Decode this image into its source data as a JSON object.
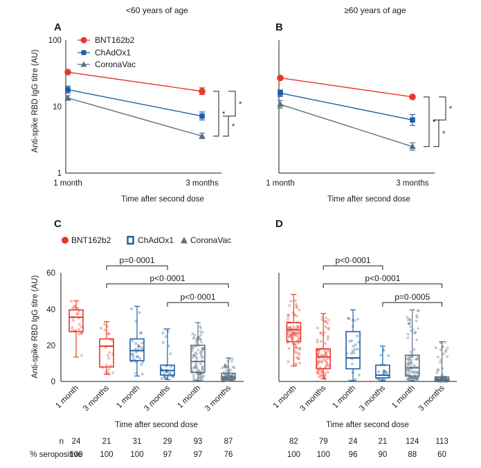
{
  "figure_titles": {
    "left": "<60 years of age",
    "right": "≥60 years of age"
  },
  "panel_letters": {
    "A": "A",
    "B": "B",
    "C": "C",
    "D": "D"
  },
  "colors": {
    "BNT162b2": "#e8372c",
    "ChAdOx1": "#1d5ea8",
    "CoronaVac": "#5a7184"
  },
  "table": {
    "row_labels": [
      "n",
      "% seropositive"
    ],
    "C": {
      "n": [
        "24",
        "21",
        "31",
        "29",
        "93",
        "87"
      ],
      "seropositive": [
        "100",
        "100",
        "100",
        "97",
        "97",
        "76"
      ]
    },
    "D": {
      "n": [
        "82",
        "79",
        "24",
        "21",
        "124",
        "113"
      ],
      "seropositive": [
        "100",
        "100",
        "96",
        "90",
        "88",
        "60"
      ]
    }
  },
  "chart_data": [
    {
      "panel": "A",
      "type": "line",
      "title": "<60 years of age",
      "xlabel": "Time after second dose",
      "ylabel": "Anti-spike RBD IgG titre (AU)",
      "yscale": "log",
      "ylim": [
        1,
        100
      ],
      "yticks": [
        "1",
        "10",
        "100"
      ],
      "categories": [
        "1 month",
        "3 months"
      ],
      "legend": [
        "BNT162b2",
        "ChAdOx1",
        "CoronaVac"
      ],
      "series": [
        {
          "name": "BNT162b2",
          "marker": "circle",
          "values": [
            33,
            17
          ],
          "err": [
            [
              33,
              33
            ],
            [
              15.2,
              19.2
            ]
          ]
        },
        {
          "name": "ChAdOx1",
          "marker": "square",
          "values": [
            18,
            7.2
          ],
          "err": [
            [
              16,
              20.3
            ],
            [
              6.3,
              8.3
            ]
          ]
        },
        {
          "name": "CoronaVac",
          "marker": "triangle",
          "values": [
            13.5,
            3.6
          ],
          "err": [
            [
              12.4,
              14.6
            ],
            [
              3.3,
              4.0
            ]
          ]
        }
      ],
      "significance": [
        {
          "between": [
            "BNT162b2",
            "CoronaVac"
          ],
          "label": "*"
        },
        {
          "between": [
            "BNT162b2",
            "ChAdOx1"
          ],
          "label": "*"
        },
        {
          "between": [
            "ChAdOx1",
            "CoronaVac"
          ],
          "label": "*"
        }
      ]
    },
    {
      "panel": "B",
      "type": "line",
      "title": "≥60 years of age",
      "xlabel": "Time after second dose",
      "ylabel": "",
      "yscale": "log",
      "ylim": [
        1,
        100
      ],
      "categories": [
        "1 month",
        "3 months"
      ],
      "series": [
        {
          "name": "BNT162b2",
          "marker": "circle",
          "values": [
            27,
            14
          ],
          "err": [
            [
              27,
              27
            ],
            [
              13.1,
              14.9
            ]
          ]
        },
        {
          "name": "ChAdOx1",
          "marker": "square",
          "values": [
            16,
            6.3
          ],
          "err": [
            [
              14.2,
              17.8
            ],
            [
              5.2,
              7.6
            ]
          ]
        },
        {
          "name": "CoronaVac",
          "marker": "triangle",
          "values": [
            10.8,
            2.5
          ],
          "err": [
            [
              9.5,
              12.3
            ],
            [
              2.2,
              2.85
            ]
          ]
        }
      ],
      "significance": [
        {
          "between": [
            "BNT162b2",
            "CoronaVac"
          ],
          "label": "*"
        },
        {
          "between": [
            "BNT162b2",
            "ChAdOx1"
          ],
          "label": "*"
        },
        {
          "between": [
            "ChAdOx1",
            "CoronaVac"
          ],
          "label": "*"
        }
      ]
    },
    {
      "panel": "C",
      "type": "box",
      "xlabel": "Time after second dose",
      "ylabel": "Anti-spike RBD IgG titre (AU)",
      "ylim": [
        0,
        60
      ],
      "yticks": [
        "0",
        "20",
        "40",
        "60"
      ],
      "legend": [
        "BNT162b2",
        "ChAdOx1",
        "CoronaVac"
      ],
      "categories": [
        "1 month",
        "3 months",
        "1 month",
        "3 months",
        "1 month",
        "3 months"
      ],
      "boxes": [
        {
          "vaccine": "BNT162b2",
          "time": "1 month",
          "min": 13.5,
          "q1": 27.5,
          "median": 35.5,
          "q3": 39.5,
          "max": 44.5,
          "n": 24
        },
        {
          "vaccine": "BNT162b2",
          "time": "3 months",
          "min": 4,
          "q1": 8,
          "median": 19.5,
          "q3": 23.5,
          "max": 33,
          "n": 21
        },
        {
          "vaccine": "ChAdOx1",
          "time": "1 month",
          "min": 3,
          "q1": 11.5,
          "median": 17,
          "q3": 23.5,
          "max": 41.5,
          "n": 31
        },
        {
          "vaccine": "ChAdOx1",
          "time": "3 months",
          "min": 1,
          "q1": 3.5,
          "median": 6,
          "q3": 9,
          "max": 29,
          "n": 29
        },
        {
          "vaccine": "CoronaVac",
          "time": "1 month",
          "min": 0.5,
          "q1": 5,
          "median": 11,
          "q3": 20,
          "max": 32.5,
          "n": 93
        },
        {
          "vaccine": "CoronaVac",
          "time": "3 months",
          "min": 0,
          "q1": 1.5,
          "median": 2.5,
          "q3": 4.5,
          "max": 13,
          "n": 87
        }
      ],
      "comparisons": [
        {
          "from": 2,
          "to": 4,
          "label": "p=0·0001"
        },
        {
          "from": 2,
          "to": 6,
          "label": "p<0·0001"
        },
        {
          "from": 4,
          "to": 6,
          "label": "p<0·0001"
        }
      ]
    },
    {
      "panel": "D",
      "type": "box",
      "xlabel": "Time after second dose",
      "ylabel": "",
      "ylim": [
        0,
        60
      ],
      "categories": [
        "1 month",
        "3 months",
        "1 month",
        "3 months",
        "1 month",
        "3 months"
      ],
      "boxes": [
        {
          "vaccine": "BNT162b2",
          "time": "1 month",
          "min": 8.5,
          "q1": 22,
          "median": 28.5,
          "q3": 32.5,
          "max": 48,
          "n": 82
        },
        {
          "vaccine": "BNT162b2",
          "time": "3 months",
          "min": 1.5,
          "q1": 7,
          "median": 13.5,
          "q3": 18,
          "max": 37.5,
          "n": 79
        },
        {
          "vaccine": "ChAdOx1",
          "time": "1 month",
          "min": 0.5,
          "q1": 7,
          "median": 13,
          "q3": 27.5,
          "max": 39.5,
          "n": 24
        },
        {
          "vaccine": "ChAdOx1",
          "time": "3 months",
          "min": 0.5,
          "q1": 2,
          "median": 3.5,
          "q3": 9,
          "max": 19.5,
          "n": 21
        },
        {
          "vaccine": "CoronaVac",
          "time": "1 month",
          "min": 0.5,
          "q1": 3,
          "median": 7.5,
          "q3": 14.5,
          "max": 39.5,
          "n": 124
        },
        {
          "vaccine": "CoronaVac",
          "time": "3 months",
          "min": 0,
          "q1": 0.5,
          "median": 1,
          "q3": 2.5,
          "max": 22,
          "n": 113
        }
      ],
      "comparisons": [
        {
          "from": 2,
          "to": 4,
          "label": "p<0·0001"
        },
        {
          "from": 2,
          "to": 6,
          "label": "p<0·0001"
        },
        {
          "from": 4,
          "to": 6,
          "label": "p=0·0005"
        }
      ]
    }
  ]
}
